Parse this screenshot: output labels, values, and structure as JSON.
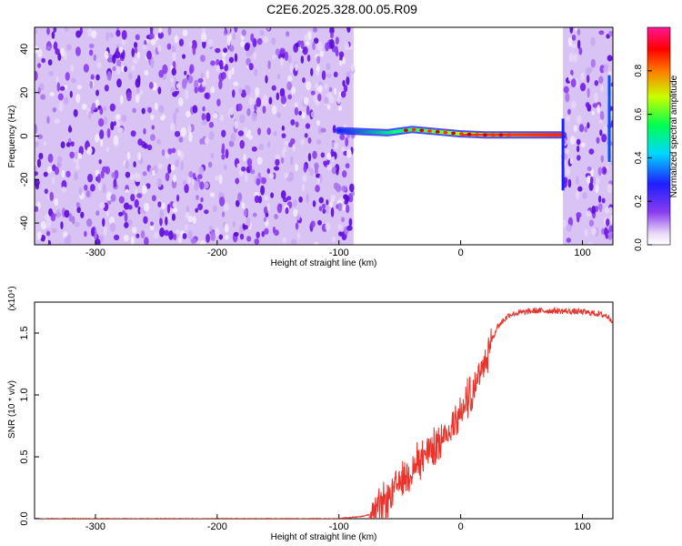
{
  "title": "C2E6.2025.328.00.05.R09",
  "chart_data": [
    {
      "type": "heatmap",
      "xlabel": "Height of straight line (km)",
      "ylabel": "Frequency (Hz)",
      "xlim": [
        -350,
        125
      ],
      "ylim": [
        -50,
        50
      ],
      "xticks": [
        -300,
        -200,
        -100,
        0,
        100
      ],
      "yticks": [
        -40,
        -20,
        0,
        20,
        40
      ],
      "colorbar": {
        "label": "Normalized spectral amplitude",
        "range": [
          0.0,
          1.0
        ],
        "ticks": [
          "0.0",
          "0.2",
          "0.4",
          "0.6",
          "0.8"
        ],
        "colormap": "rainbow (white→violet→blue→cyan→green→yellow→red→pink)"
      },
      "features": {
        "noise_regions_km": [
          [
            -350,
            -88
          ],
          [
            84,
            125
          ]
        ],
        "empty_region_km": [
          -88,
          84
        ],
        "signal_line": {
          "x": [
            -100,
            -80,
            -60,
            -40,
            -20,
            0,
            20,
            40,
            60,
            84
          ],
          "frequency": [
            2.5,
            2.0,
            1.5,
            3.0,
            2.0,
            1.0,
            0.5,
            0.5,
            0.5,
            0.5
          ],
          "peak_amplitude_region_km": [
            0,
            84
          ]
        }
      }
    },
    {
      "type": "line",
      "xlabel": "Height of straight line (km)",
      "ylabel": "SNR (10 * v/v)",
      "y_multiplier": "(x10⁴)",
      "xlim": [
        -350,
        125
      ],
      "ylim": [
        0,
        1.75
      ],
      "xticks": [
        -300,
        -200,
        -100,
        0,
        100
      ],
      "yticks": [
        "0.0",
        "0.5",
        "1.0",
        "1.5"
      ],
      "color": "#e8342c",
      "series": [
        {
          "x": [
            -350,
            -300,
            -200,
            -100,
            -90,
            -80,
            -70,
            -60,
            -50,
            -40,
            -30,
            -20,
            -10,
            0,
            10,
            20,
            30,
            40,
            60,
            80,
            100,
            110,
            120,
            125
          ],
          "y": [
            0.0,
            0.0,
            0.0,
            0.0,
            0.01,
            0.02,
            0.05,
            0.15,
            0.3,
            0.4,
            0.5,
            0.6,
            0.7,
            0.85,
            1.05,
            1.3,
            1.55,
            1.65,
            1.68,
            1.68,
            1.67,
            1.66,
            1.64,
            1.6
          ]
        }
      ]
    }
  ]
}
